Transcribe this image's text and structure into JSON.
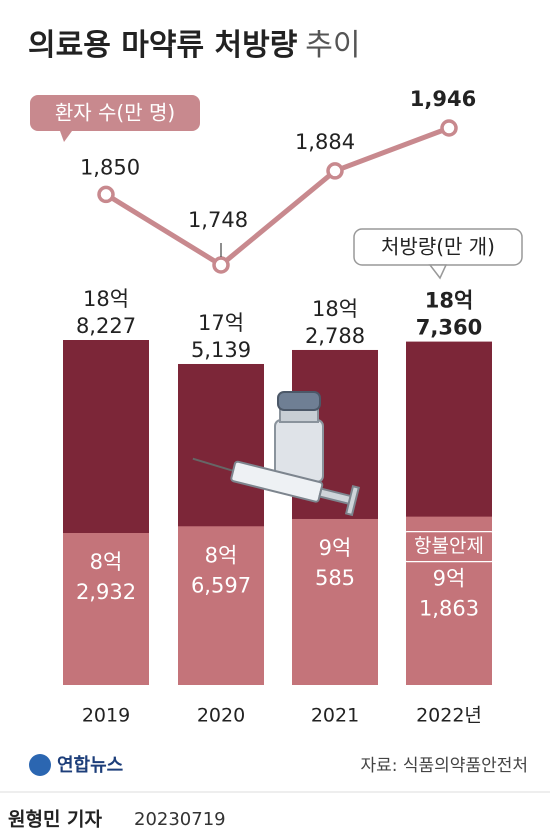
{
  "title": "의료용 마약류 처방량",
  "title_suffix": "추이",
  "chart_data": {
    "type": "bar",
    "categories": [
      "2019",
      "2020",
      "2021",
      "2022년"
    ],
    "series": [
      {
        "name": "환자 수(만 명)",
        "type": "line",
        "color": "#c8898e",
        "values": [
          1850,
          1748,
          1884,
          1946
        ],
        "value_labels": [
          "1,850",
          "1,748",
          "1,884",
          "1,946"
        ]
      },
      {
        "name": "처방량(만 개)",
        "type": "bar",
        "color": "#7c2638",
        "values": [
          188227,
          175139,
          182788,
          187360
        ],
        "value_labels": [
          [
            "18억",
            "8,227"
          ],
          [
            "17억",
            "5,139"
          ],
          [
            "18억",
            "2,788"
          ],
          [
            "18억",
            "7,360"
          ]
        ]
      },
      {
        "name": "항불안제",
        "type": "bar",
        "color": "#c4747a",
        "values": [
          82932,
          86597,
          90585,
          91863
        ],
        "value_labels": [
          [
            "8억",
            "2,932"
          ],
          [
            "8억",
            "6,597"
          ],
          [
            "9억",
            "585"
          ],
          [
            "9억",
            "1,863"
          ]
        ]
      }
    ]
  },
  "source": "자료: 식품의약품안전처",
  "logo": "연합뉴스",
  "byline": "원형민 기자",
  "date": "20230719"
}
